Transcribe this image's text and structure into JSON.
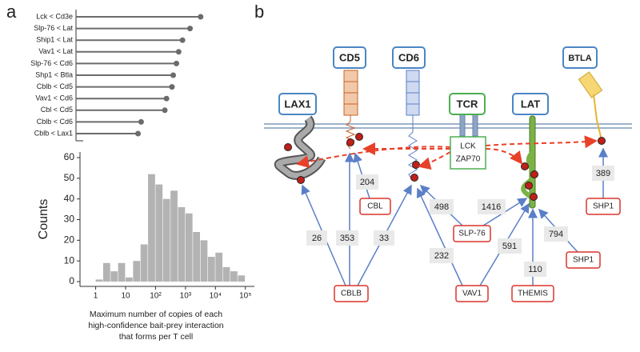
{
  "panel_labels": [
    "a",
    "b"
  ],
  "chart_data": [
    {
      "type": "lollipop",
      "categories": [
        "Lck < Cd3e",
        "Slp-76 < Lat",
        "Ship1 < Lat",
        "Vav1 < Lat",
        "Slp-76 < Cd6",
        "Shp1 < Btla",
        "Cblb < Cd5",
        "Vav1 < Cd6",
        "Cbl < Cd5",
        "Cblb < Cd6",
        "Cblb < Lax1"
      ],
      "values": [
        3200,
        1416,
        794,
        591,
        498,
        389,
        353,
        232,
        204,
        33,
        26
      ],
      "color": "#6b6b6b",
      "xscale": "log",
      "xlim": [
        0.3,
        200000
      ]
    },
    {
      "type": "histogram",
      "bins": [
        1,
        1.778,
        3.162,
        5.623,
        10,
        17.78,
        31.62,
        56.23,
        100,
        177.8,
        316.2,
        562.3,
        1000,
        1778,
        3162,
        5623,
        10000,
        17780,
        31620,
        56230,
        100000
      ],
      "values": [
        1,
        9,
        5,
        9,
        2,
        10,
        18,
        52,
        47,
        40,
        44,
        36,
        33,
        24,
        20,
        12,
        14,
        7,
        5,
        3
      ],
      "color": "#b3b3b3",
      "xscale": "log",
      "xlim": [
        0.3,
        200000
      ],
      "ylim": [
        0,
        60
      ],
      "xticks": [
        1,
        10,
        {
          "value": 100,
          "label": "10²"
        },
        {
          "value": 1000,
          "label": "10³"
        },
        {
          "value": 10000,
          "label": "10⁴"
        },
        {
          "value": 100000,
          "label": "10⁵"
        }
      ],
      "yticks": [
        0,
        10,
        20,
        30,
        40,
        50,
        60
      ],
      "ylabel": "Counts",
      "xlabel": [
        "Maximum number of copies of each",
        "high-confidence bait-prey interaction",
        "that forms per T cell"
      ]
    }
  ],
  "diagram": {
    "membrane_proteins": [
      "LAX1",
      "CD5",
      "CD6",
      "TCR",
      "LAT",
      "BTLA"
    ],
    "kinases": [
      "LCK",
      "ZAP70"
    ],
    "effectors": [
      "CBL",
      "CBLB",
      "SLP-76",
      "VAV1",
      "THEMIS",
      "SHP1",
      "SHP1"
    ],
    "edge_labels": [
      204,
      26,
      353,
      33,
      498,
      1416,
      232,
      591,
      110,
      794,
      389
    ]
  }
}
